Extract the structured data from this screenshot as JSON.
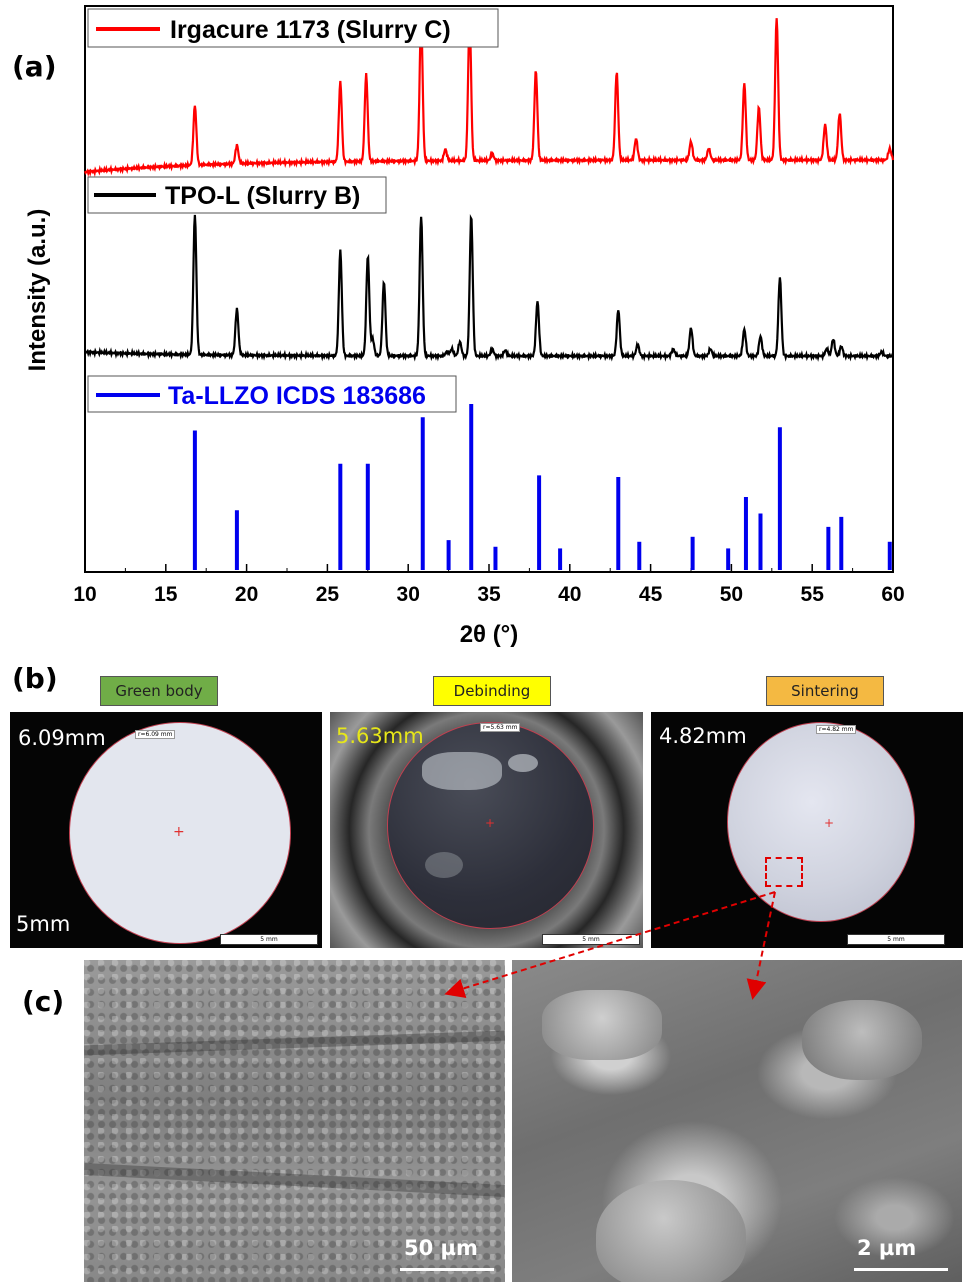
{
  "panel_labels": {
    "a": "(a)",
    "b": "(b)",
    "c": "(c)"
  },
  "panel_a": {
    "ylabel": "Intensity (a.u.)",
    "xlabel": "2θ (°)",
    "xticks": [
      "10",
      "15",
      "20",
      "25",
      "30",
      "35",
      "40",
      "45",
      "50",
      "55",
      "60"
    ],
    "legends": [
      {
        "label": "Irgacure 1173 (Slurry C)",
        "color": "#ff0000"
      },
      {
        "label": "TPO-L (Slurry B)",
        "color": "#000000"
      },
      {
        "label": "Ta-LLZO ICDS 183686",
        "color": "#0000ee"
      }
    ]
  },
  "chart_data": {
    "type": "line",
    "xlabel": "2θ (°)",
    "ylabel": "Intensity (a.u.)",
    "xlim": [
      10,
      60
    ],
    "series": [
      {
        "name": "Irgacure 1173 (Slurry C)",
        "color": "#ff0000",
        "style": "line",
        "peaks": [
          [
            16.8,
            0.42
          ],
          [
            19.4,
            0.13
          ],
          [
            25.8,
            0.56
          ],
          [
            27.4,
            0.61
          ],
          [
            30.8,
            1.0
          ],
          [
            32.3,
            0.08
          ],
          [
            33.8,
            1.0
          ],
          [
            35.2,
            0.05
          ],
          [
            37.9,
            0.63
          ],
          [
            42.9,
            0.62
          ],
          [
            44.1,
            0.15
          ],
          [
            47.5,
            0.13
          ],
          [
            48.6,
            0.08
          ],
          [
            50.8,
            0.54
          ],
          [
            51.7,
            0.37
          ],
          [
            52.8,
            1.0
          ],
          [
            55.8,
            0.25
          ],
          [
            56.7,
            0.33
          ],
          [
            59.8,
            0.08
          ]
        ]
      },
      {
        "name": "TPO-L (Slurry B)",
        "color": "#000000",
        "style": "line",
        "peaks": [
          [
            16.8,
            1.0
          ],
          [
            19.4,
            0.33
          ],
          [
            25.8,
            0.75
          ],
          [
            27.5,
            0.71
          ],
          [
            27.8,
            0.12
          ],
          [
            28.5,
            0.53
          ],
          [
            30.8,
            1.0
          ],
          [
            32.4,
            0.03
          ],
          [
            32.7,
            0.05
          ],
          [
            33.2,
            0.1
          ],
          [
            33.9,
            1.0
          ],
          [
            35.2,
            0.05
          ],
          [
            36.0,
            0.04
          ],
          [
            38.0,
            0.39
          ],
          [
            43.0,
            0.33
          ],
          [
            44.2,
            0.08
          ],
          [
            46.4,
            0.05
          ],
          [
            47.5,
            0.2
          ],
          [
            48.7,
            0.05
          ],
          [
            50.8,
            0.19
          ],
          [
            51.8,
            0.14
          ],
          [
            53.0,
            0.56
          ],
          [
            55.9,
            0.05
          ],
          [
            56.3,
            0.12
          ],
          [
            56.8,
            0.07
          ],
          [
            59.3,
            0.03
          ]
        ]
      },
      {
        "name": "Ta-LLZO ICDS 183686",
        "color": "#0000ee",
        "style": "stick",
        "peaks": [
          [
            16.8,
            0.84
          ],
          [
            19.4,
            0.36
          ],
          [
            25.8,
            0.64
          ],
          [
            27.5,
            0.64
          ],
          [
            30.9,
            0.92
          ],
          [
            32.5,
            0.18
          ],
          [
            33.9,
            1.0
          ],
          [
            35.4,
            0.14
          ],
          [
            38.1,
            0.57
          ],
          [
            39.4,
            0.13
          ],
          [
            43.0,
            0.56
          ],
          [
            44.3,
            0.17
          ],
          [
            47.6,
            0.2
          ],
          [
            49.8,
            0.13
          ],
          [
            50.9,
            0.44
          ],
          [
            51.8,
            0.34
          ],
          [
            53.0,
            0.86
          ],
          [
            56.0,
            0.26
          ],
          [
            56.8,
            0.32
          ],
          [
            59.8,
            0.17
          ]
        ]
      }
    ]
  },
  "panel_b": {
    "stages": [
      {
        "label": "Green body",
        "color": "#70ad47",
        "diameter": "6.09mm",
        "small_label": "r=6.09 mm",
        "diameter_color": "#ffffff",
        "scale_label": "5mm"
      },
      {
        "label": "Debinding",
        "color": "#ffff00",
        "diameter": "5.63mm",
        "small_label": "r=5.63 mm",
        "diameter_color": "#e6e61a",
        "scale_label": ""
      },
      {
        "label": "Sintering",
        "color": "#f4b942",
        "diameter": "4.82mm",
        "small_label": "r=4.82 mm",
        "diameter_color": "#ffffff",
        "scale_label": ""
      }
    ],
    "scalebar_text": "5 mm"
  },
  "panel_c": {
    "scale_left": "50 µm",
    "scale_right": "2 µm"
  }
}
